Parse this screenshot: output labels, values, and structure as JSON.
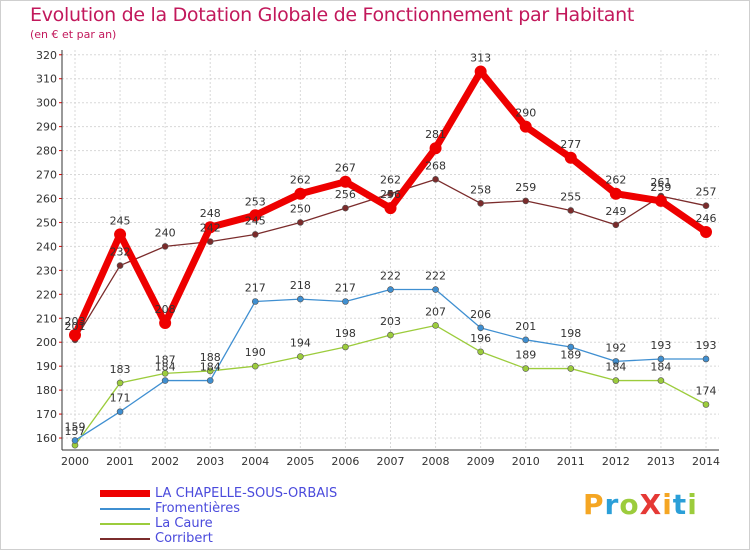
{
  "title": "Evolution de la Dotation Globale de Fonctionnement par Habitant",
  "subtitle": "(en € et par an)",
  "logo": {
    "text": "ProXiti",
    "colors": [
      "#f5a623",
      "#2b9fd8",
      "#9ccc3c",
      "#e53935",
      "#f5a623",
      "#2b9fd8",
      "#9ccc3c"
    ]
  },
  "chart_data": {
    "type": "line",
    "x": [
      "2000",
      "2001",
      "2002",
      "2003",
      "2004",
      "2005",
      "2006",
      "2007",
      "2008",
      "2009",
      "2010",
      "2011",
      "2012",
      "2013",
      "2014"
    ],
    "ylim": [
      155,
      322
    ],
    "yticks": [
      160,
      170,
      180,
      190,
      200,
      210,
      220,
      230,
      240,
      250,
      260,
      270,
      280,
      290,
      300,
      310,
      320
    ],
    "grid": true,
    "legend_position": "bottom-left",
    "series": [
      {
        "name": "Corribert",
        "color": "#7b2c2c",
        "values": [
          201,
          232,
          240,
          242,
          245,
          250,
          256,
          262,
          268,
          258,
          259,
          255,
          249,
          261,
          257
        ]
      },
      {
        "name": "La Caure",
        "color": "#9ccc3c",
        "values": [
          157,
          183,
          187,
          188,
          190,
          194,
          198,
          203,
          207,
          196,
          189,
          189,
          184,
          184,
          174
        ]
      },
      {
        "name": "Fromentières",
        "color": "#3f8fd1",
        "values": [
          159,
          171,
          184,
          184,
          217,
          218,
          217,
          222,
          222,
          206,
          201,
          198,
          192,
          193,
          193
        ]
      },
      {
        "name": "LA CHAPELLE-SOUS-ORBAIS",
        "color": "#ee0000",
        "values": [
          203,
          245,
          208,
          248,
          253,
          262,
          267,
          256,
          281,
          313,
          290,
          277,
          262,
          259,
          246
        ]
      }
    ],
    "legend_order": [
      "LA CHAPELLE-SOUS-ORBAIS",
      "Fromentières",
      "La Caure",
      "Corribert"
    ]
  }
}
